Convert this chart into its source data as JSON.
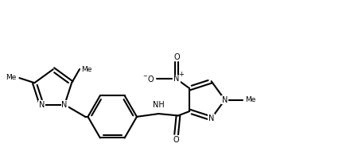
{
  "bg_color": "#ffffff",
  "line_color": "#000000",
  "lw": 1.5,
  "fig_width": 4.55,
  "fig_height": 2.0,
  "dpi": 100,
  "xlim": [
    0,
    9.5
  ],
  "ylim": [
    0,
    4.2
  ]
}
